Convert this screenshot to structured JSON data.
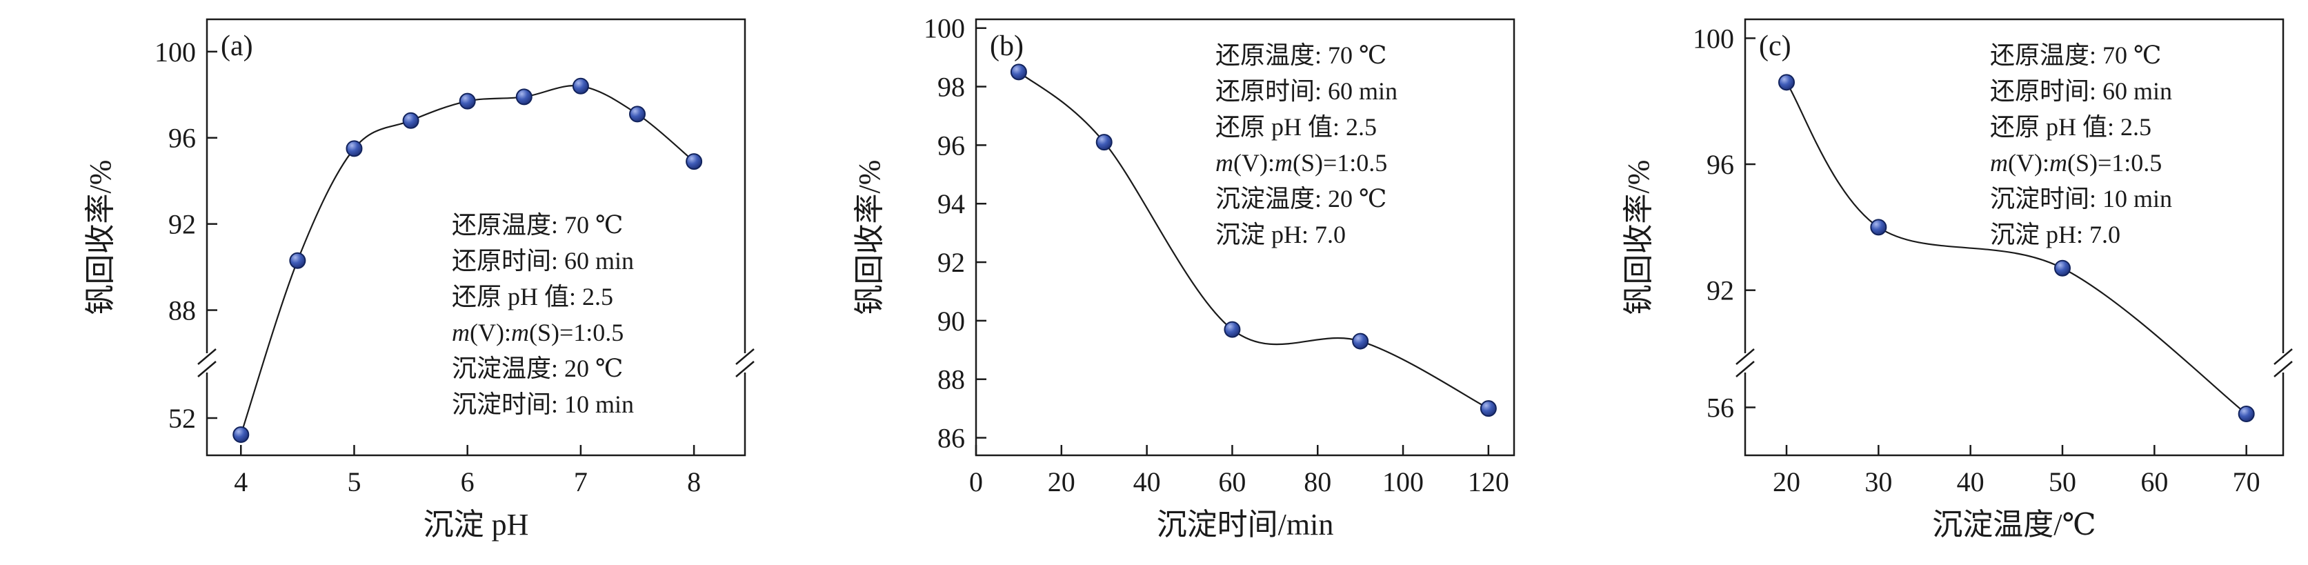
{
  "figure": {
    "background": "#ffffff",
    "line_color": "#1a1a1a",
    "marker_highlight": "#a8b8ee",
    "marker_fill": "#3f5cb8",
    "marker_dark": "#18296e",
    "marker_stroke": "#12235c"
  },
  "chart_data": [
    {
      "type": "line",
      "panel_label": "(a)",
      "xlabel": "沉淀 pH",
      "ylabel": "钒回收率/%",
      "x_ticks": [
        4,
        5,
        6,
        7,
        8
      ],
      "x_range": [
        3.7,
        8.45
      ],
      "y_axis": {
        "broken": true,
        "upper": {
          "range": [
            86,
            101.5
          ],
          "ticks": [
            88,
            92,
            96,
            100
          ]
        },
        "lower": {
          "range": [
            50.2,
            54.2
          ],
          "ticks": [
            52
          ]
        }
      },
      "x": [
        4,
        4.5,
        5,
        5.5,
        6,
        6.5,
        7,
        7.5,
        8
      ],
      "y": [
        51.2,
        90.3,
        95.5,
        96.8,
        97.7,
        97.9,
        98.4,
        97.1,
        94.9
      ],
      "annotation": {
        "lines": [
          "还原温度: 70 ℃",
          "还原时间: 60 min",
          "还原 pH 值: 2.5",
          "m(V):m(S)=1:0.5",
          "沉淀温度: 20 ℃",
          "沉淀时间: 10 min"
        ],
        "x": 655,
        "first_baseline": 338,
        "line_height": 52
      }
    },
    {
      "type": "line",
      "panel_label": "(b)",
      "xlabel": "沉淀时间/min",
      "ylabel": "钒回收率/%",
      "x_ticks": [
        0,
        20,
        40,
        60,
        80,
        100,
        120
      ],
      "x_range": [
        0,
        126
      ],
      "y_axis": {
        "broken": false,
        "range": [
          85.4,
          100.3
        ],
        "ticks": [
          86,
          88,
          90,
          92,
          94,
          96,
          98,
          100
        ]
      },
      "x": [
        10,
        30,
        60,
        90,
        120
      ],
      "y": [
        98.5,
        96.1,
        89.7,
        89.3,
        87.0
      ],
      "annotation": {
        "lines": [
          "还原温度: 70 ℃",
          "还原时间: 60 min",
          "还原 pH 值: 2.5",
          "m(V):m(S)=1:0.5",
          "沉淀温度: 20 ℃",
          "沉淀 pH: 7.0"
        ],
        "x": 647,
        "first_baseline": 92,
        "line_height": 52
      }
    },
    {
      "type": "line",
      "panel_label": "(c)",
      "xlabel": "沉淀温度/℃",
      "ylabel": "钒回收率/%",
      "x_ticks": [
        20,
        30,
        40,
        50,
        60,
        70
      ],
      "x_range": [
        15.5,
        74
      ],
      "y_axis": {
        "broken": true,
        "upper": {
          "range": [
            90,
            100.6
          ],
          "ticks": [
            92,
            96,
            100
          ]
        },
        "lower": {
          "range": [
            53.8,
            57.6
          ],
          "ticks": [
            56
          ]
        }
      },
      "x": [
        20,
        30,
        50,
        70
      ],
      "y": [
        98.6,
        94.0,
        92.7,
        55.7
      ],
      "annotation": {
        "lines": [
          "还原温度: 70 ℃",
          "还原时间: 60 min",
          "还原 pH 值: 2.5",
          "m(V):m(S)=1:0.5",
          "沉淀时间: 10 min",
          "沉淀 pH: 7.0"
        ],
        "x": 655,
        "first_baseline": 92,
        "line_height": 52
      }
    }
  ]
}
